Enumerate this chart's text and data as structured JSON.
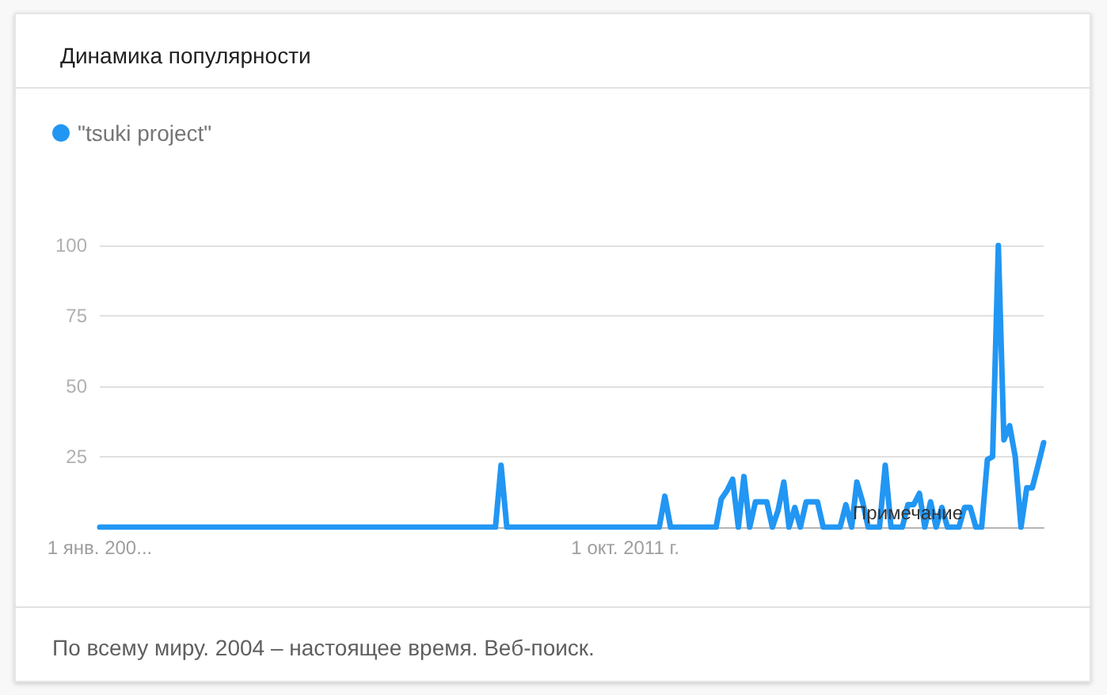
{
  "chart_data": {
    "type": "line",
    "title": "Динамика популярности",
    "annotations": [
      "По всему миру. 2004 – настоящее время. Веб-поиск.",
      {
        "text": "Примечание",
        "x": "2015-12",
        "y": 5
      }
    ],
    "x": [
      "2004-01",
      "2004-02",
      "2004-03",
      "2004-04",
      "2004-05",
      "2004-06",
      "2004-07",
      "2004-08",
      "2004-09",
      "2004-10",
      "2004-11",
      "2004-12",
      "2005-01",
      "2005-02",
      "2005-03",
      "2005-04",
      "2005-05",
      "2005-06",
      "2005-07",
      "2005-08",
      "2005-09",
      "2005-10",
      "2005-11",
      "2005-12",
      "2006-01",
      "2006-02",
      "2006-03",
      "2006-04",
      "2006-05",
      "2006-06",
      "2006-07",
      "2006-08",
      "2006-09",
      "2006-10",
      "2006-11",
      "2006-12",
      "2007-01",
      "2007-02",
      "2007-03",
      "2007-04",
      "2007-05",
      "2007-06",
      "2007-07",
      "2007-08",
      "2007-09",
      "2007-10",
      "2007-11",
      "2007-12",
      "2008-01",
      "2008-02",
      "2008-03",
      "2008-04",
      "2008-05",
      "2008-06",
      "2008-07",
      "2008-08",
      "2008-09",
      "2008-10",
      "2008-11",
      "2008-12",
      "2009-01",
      "2009-02",
      "2009-03",
      "2009-04",
      "2009-05",
      "2009-06",
      "2009-07",
      "2009-08",
      "2009-09",
      "2009-10",
      "2009-11",
      "2009-12",
      "2010-01",
      "2010-02",
      "2010-03",
      "2010-04",
      "2010-05",
      "2010-06",
      "2010-07",
      "2010-08",
      "2010-09",
      "2010-10",
      "2010-11",
      "2010-12",
      "2011-01",
      "2011-02",
      "2011-03",
      "2011-04",
      "2011-05",
      "2011-06",
      "2011-07",
      "2011-08",
      "2011-09",
      "2011-10",
      "2011-11",
      "2011-12",
      "2012-01",
      "2012-02",
      "2012-03",
      "2012-04",
      "2012-05",
      "2012-06",
      "2012-07",
      "2012-08",
      "2012-09",
      "2012-10",
      "2012-11",
      "2012-12",
      "2013-01",
      "2013-02",
      "2013-03",
      "2013-04",
      "2013-05",
      "2013-06",
      "2013-07",
      "2013-08",
      "2013-09",
      "2013-10",
      "2013-11",
      "2013-12",
      "2014-01",
      "2014-02",
      "2014-03",
      "2014-04",
      "2014-05",
      "2014-06",
      "2014-07",
      "2014-08",
      "2014-09",
      "2014-10",
      "2014-11",
      "2014-12",
      "2015-01",
      "2015-02",
      "2015-03",
      "2015-04",
      "2015-05",
      "2015-06",
      "2015-07",
      "2015-08",
      "2015-09",
      "2015-10",
      "2015-11",
      "2015-12",
      "2016-01",
      "2016-02",
      "2016-03",
      "2016-04",
      "2016-05",
      "2016-06",
      "2016-07",
      "2016-08",
      "2016-09",
      "2016-10",
      "2016-11",
      "2016-12",
      "2017-01",
      "2017-02",
      "2017-03",
      "2017-04",
      "2017-05",
      "2017-06",
      "2017-07",
      "2017-08",
      "2017-09",
      "2017-10",
      "2017-11",
      "2017-12"
    ],
    "series": [
      {
        "name": "\"tsuki project\"",
        "color": "#2196f3",
        "values": [
          0,
          0,
          0,
          0,
          0,
          0,
          0,
          0,
          0,
          0,
          0,
          0,
          0,
          0,
          0,
          0,
          0,
          0,
          0,
          0,
          0,
          0,
          0,
          0,
          0,
          0,
          0,
          0,
          0,
          0,
          0,
          0,
          0,
          0,
          0,
          0,
          0,
          0,
          0,
          0,
          0,
          0,
          0,
          0,
          0,
          0,
          0,
          0,
          0,
          0,
          0,
          0,
          0,
          0,
          0,
          0,
          0,
          0,
          0,
          0,
          0,
          0,
          0,
          0,
          0,
          0,
          0,
          0,
          0,
          0,
          0,
          22,
          0,
          0,
          0,
          0,
          0,
          0,
          0,
          0,
          0,
          0,
          0,
          0,
          0,
          0,
          0,
          0,
          0,
          0,
          0,
          0,
          0,
          0,
          0,
          0,
          0,
          0,
          0,
          0,
          11,
          0,
          0,
          0,
          0,
          0,
          0,
          0,
          0,
          0,
          10,
          13,
          17,
          0,
          18,
          0,
          9,
          9,
          9,
          0,
          6,
          16,
          0,
          7,
          0,
          9,
          9,
          9,
          0,
          0,
          0,
          0,
          8,
          0,
          16,
          9,
          0,
          0,
          0,
          22,
          0,
          0,
          0,
          8,
          8,
          12,
          0,
          9,
          0,
          7,
          0,
          0,
          0,
          7,
          7,
          0,
          0,
          24,
          25,
          100,
          31,
          36,
          25,
          0,
          14,
          14,
          22,
          30
        ]
      }
    ],
    "xlim": [
      "2004-01",
      "2017-12"
    ],
    "xticks": [
      {
        "value": "2004-01",
        "label": "1 янв. 200..."
      },
      {
        "value": "2011-10",
        "label": "1 окт. 2011 г."
      }
    ],
    "ylim": [
      0,
      100
    ],
    "yticks": [
      25,
      50,
      75,
      100
    ],
    "grid": "y",
    "legend": "top left",
    "marker": "none",
    "line_style": "solid"
  }
}
